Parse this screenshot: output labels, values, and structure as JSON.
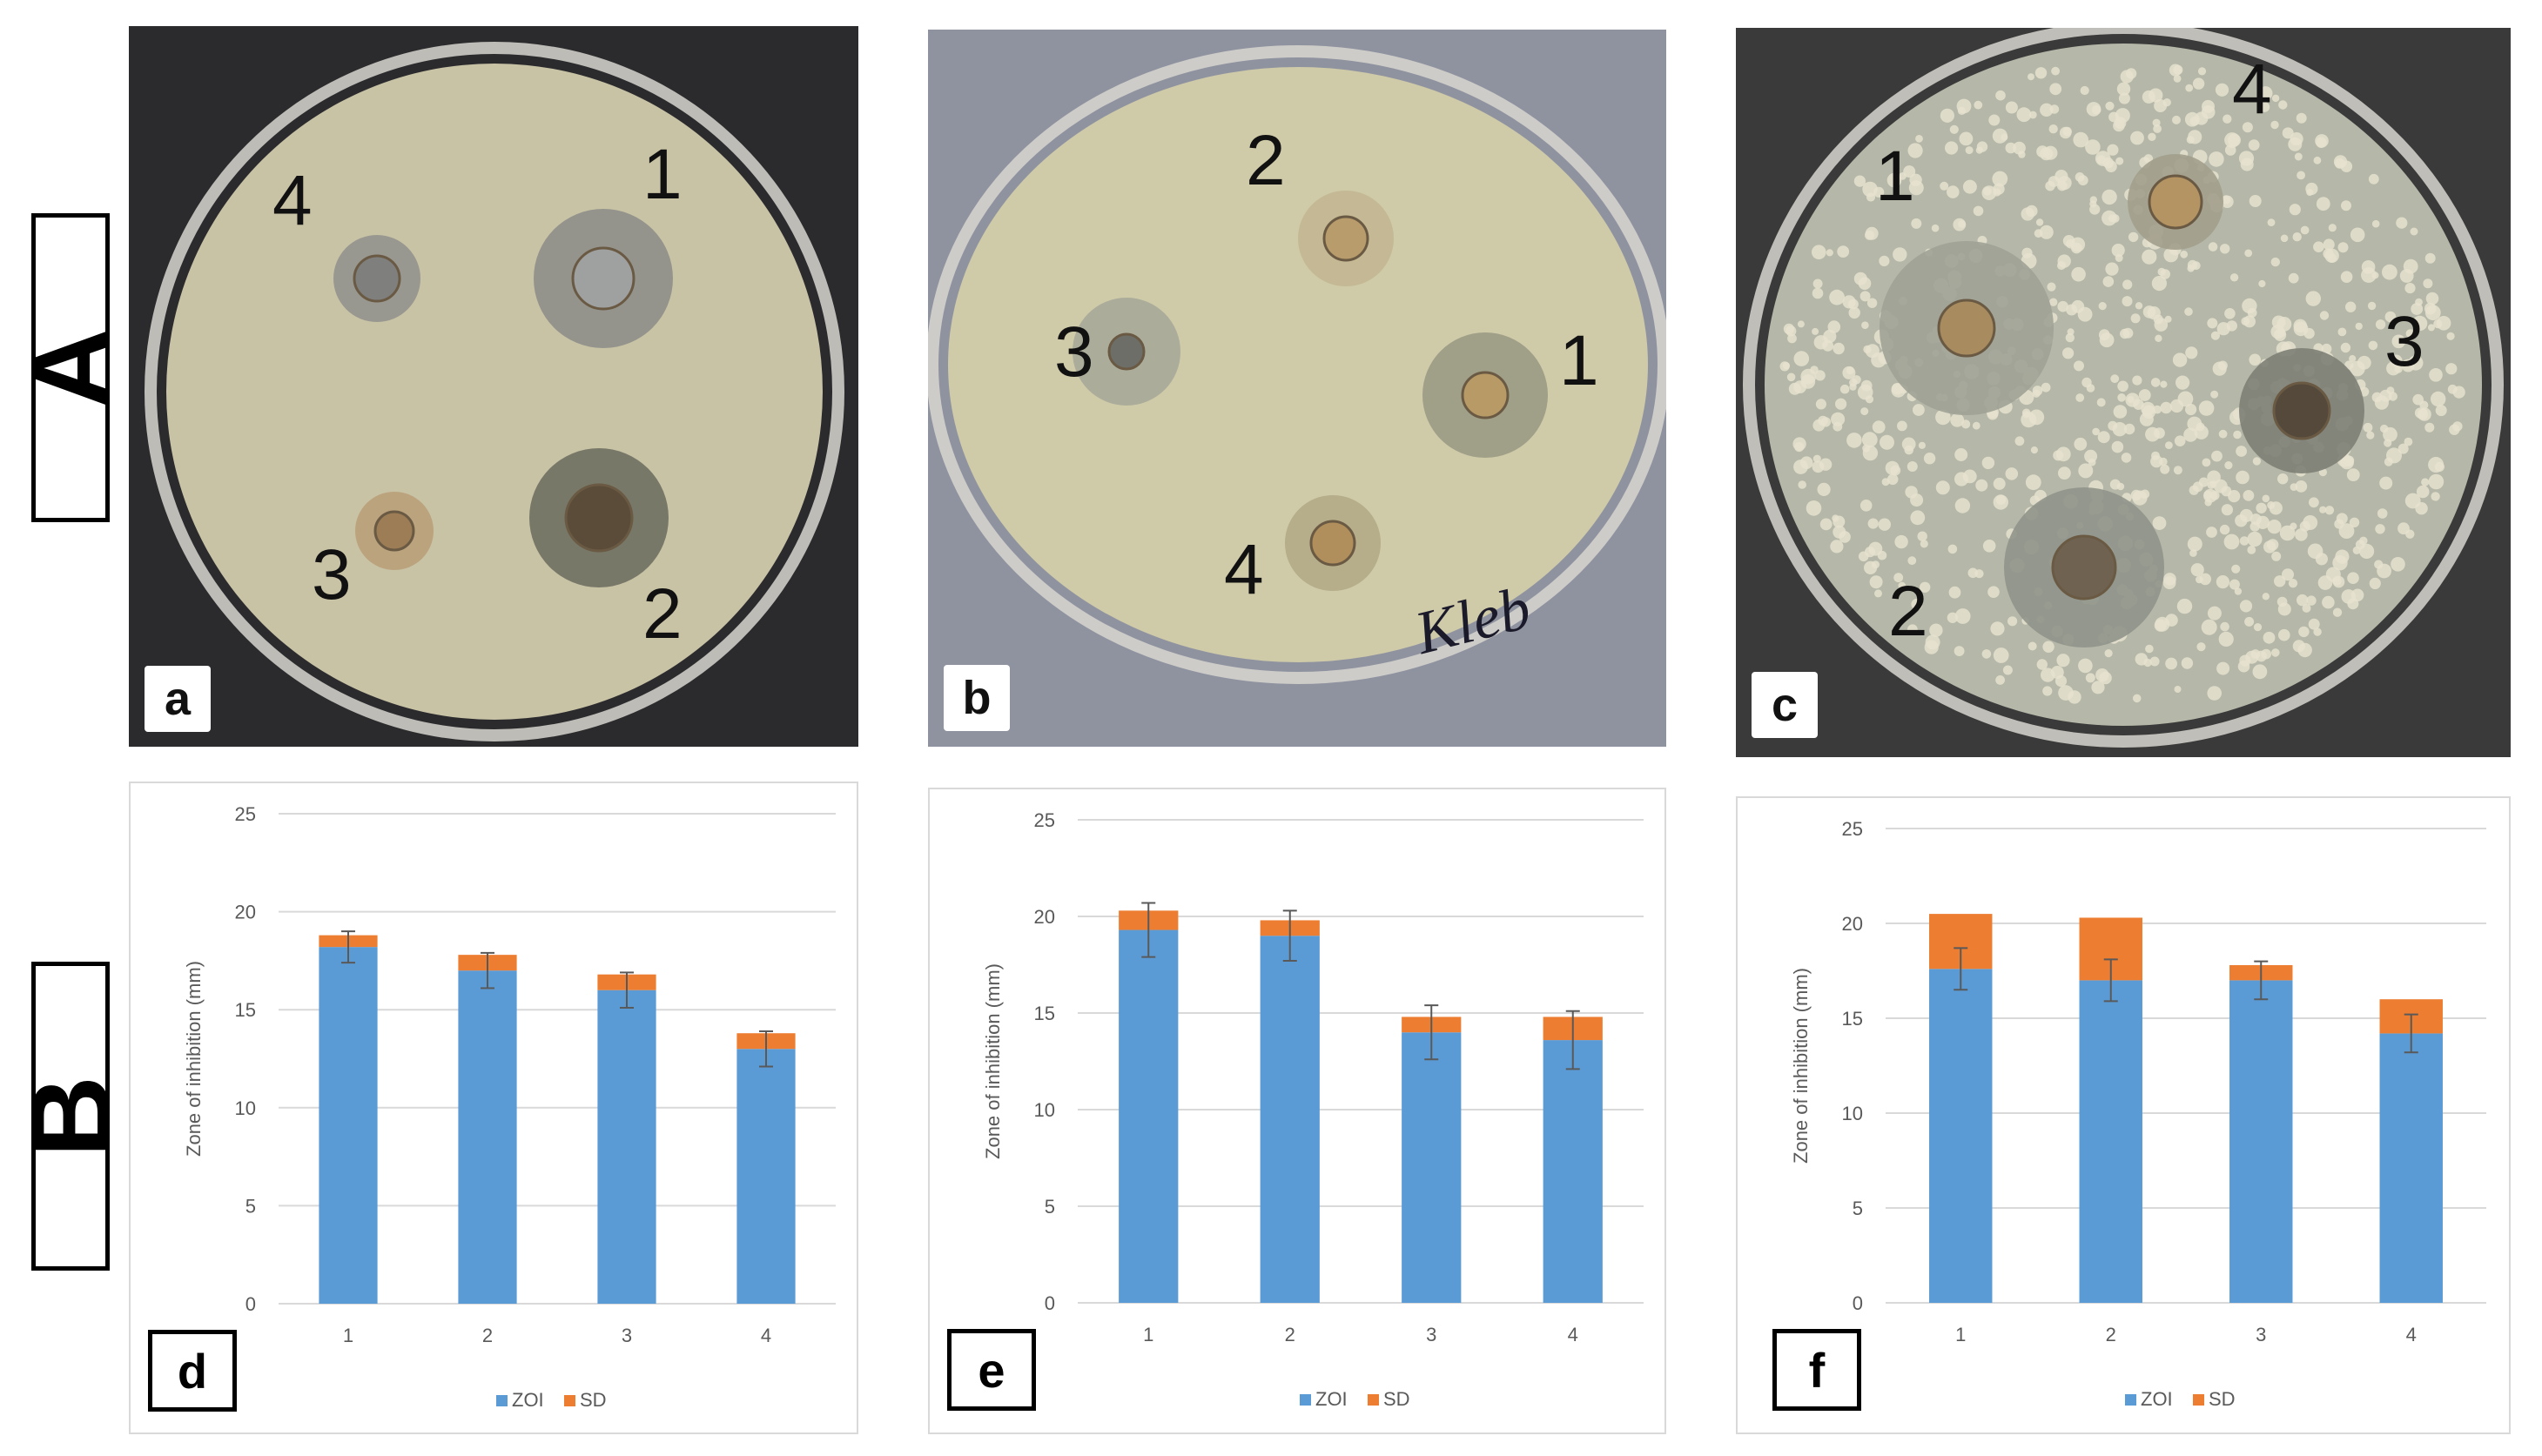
{
  "rows": {
    "a_label": "A",
    "b_label": "B"
  },
  "photos": [
    {
      "letter": "a",
      "bg": "#2b2b2e",
      "agar": "#c9c3a6",
      "marker": "",
      "wells": [
        {
          "num": "1",
          "zone": "#8e8f8a",
          "core": "#9fa0a0"
        },
        {
          "num": "2",
          "zone": "#6f7062",
          "core": "#5b4c3a"
        },
        {
          "num": "3",
          "zone": "#b9a07a",
          "core": "#9c7d56"
        },
        {
          "num": "4",
          "zone": "#94948e",
          "core": "#7f7f7e"
        }
      ]
    },
    {
      "letter": "b",
      "bg": "#8f93a0",
      "agar": "#cfcaa8",
      "marker": "Kleb",
      "wells": [
        {
          "num": "1",
          "zone": "#9a9a84",
          "core": "#b89a66"
        },
        {
          "num": "2",
          "zone": "#c2b791",
          "core": "#b89c6b"
        },
        {
          "num": "3",
          "zone": "#a6a898",
          "core": "#6d6e68"
        },
        {
          "num": "4",
          "zone": "#b3aa86",
          "core": "#b08f5c"
        }
      ]
    },
    {
      "letter": "c",
      "bg": "#3a3a3a",
      "agar": "#b5b7a8",
      "marker": "",
      "wells": [
        {
          "num": "1",
          "zone": "#9ea295",
          "core": "#a88b5e"
        },
        {
          "num": "2",
          "zone": "#8f938a",
          "core": "#6f6250"
        },
        {
          "num": "3",
          "zone": "#7d8076",
          "core": "#54493a"
        },
        {
          "num": "4",
          "zone": "#a29f8c",
          "core": "#b59463"
        }
      ]
    }
  ],
  "chart_data": [
    {
      "type": "bar",
      "panel": "d",
      "ylabel": "Zone of inhibition (mm)",
      "xlabel": "",
      "title": "",
      "categories": [
        "1",
        "2",
        "3",
        "4"
      ],
      "ylim": [
        0,
        25
      ],
      "yticks": [
        "0",
        "5",
        "10",
        "15",
        "20",
        "25"
      ],
      "stacked": true,
      "grid": true,
      "legend_position": "bottom",
      "series": [
        {
          "name": "ZOI",
          "color": "#5b9bd5",
          "values": [
            18.2,
            17.0,
            16.0,
            13.0
          ]
        },
        {
          "name": "SD",
          "color": "#ed7d31",
          "values": [
            0.6,
            0.8,
            0.8,
            0.8
          ]
        }
      ],
      "error_bars": [
        0.8,
        0.9,
        0.9,
        0.9
      ]
    },
    {
      "type": "bar",
      "panel": "e",
      "ylabel": "Zone of inhibition (mm)",
      "xlabel": "",
      "title": "",
      "categories": [
        "1",
        "2",
        "3",
        "4"
      ],
      "ylim": [
        0,
        25
      ],
      "yticks": [
        "0",
        "5",
        "10",
        "15",
        "20",
        "25"
      ],
      "stacked": true,
      "grid": true,
      "legend_position": "bottom",
      "series": [
        {
          "name": "ZOI",
          "color": "#5b9bd5",
          "values": [
            19.3,
            19.0,
            14.0,
            13.6
          ]
        },
        {
          "name": "SD",
          "color": "#ed7d31",
          "values": [
            1.0,
            0.8,
            0.8,
            1.2
          ]
        }
      ],
      "error_bars": [
        1.4,
        1.3,
        1.4,
        1.5
      ]
    },
    {
      "type": "bar",
      "panel": "f",
      "ylabel": "Zone of inhibition (mm)",
      "xlabel": "",
      "title": "",
      "categories": [
        "1",
        "2",
        "3",
        "4"
      ],
      "ylim": [
        0,
        25
      ],
      "yticks": [
        "0",
        "5",
        "10",
        "15",
        "20",
        "25"
      ],
      "stacked": true,
      "grid": true,
      "legend_position": "bottom",
      "series": [
        {
          "name": "ZOI",
          "color": "#5b9bd5",
          "values": [
            17.6,
            17.0,
            17.0,
            14.2
          ]
        },
        {
          "name": "SD",
          "color": "#ed7d31",
          "values": [
            2.9,
            3.3,
            0.8,
            1.8
          ]
        }
      ],
      "error_bars": [
        1.1,
        1.1,
        1.0,
        1.0
      ]
    }
  ]
}
